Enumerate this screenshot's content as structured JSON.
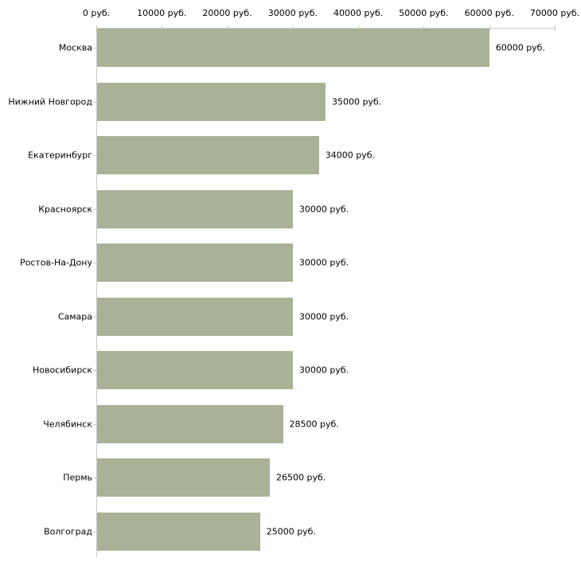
{
  "chart_data": {
    "type": "bar",
    "orientation": "horizontal",
    "title": "",
    "categories": [
      "Москва",
      "Нижний Новгород",
      "Екатеринбург",
      "Красноярск",
      "Ростов-На-Дону",
      "Самара",
      "Новосибирск",
      "Челябинск",
      "Пермь",
      "Волгоград"
    ],
    "values": [
      60000,
      35000,
      34000,
      30000,
      30000,
      30000,
      30000,
      28500,
      26500,
      25000
    ],
    "value_labels": [
      "60000 руб.",
      "35000 руб.",
      "34000 руб.",
      "30000 руб.",
      "30000 руб.",
      "30000 руб.",
      "30000 руб.",
      "28500 руб.",
      "26500 руб.",
      "25000 руб."
    ],
    "x_axis": {
      "position": "top",
      "min": 0,
      "max": 70000,
      "ticks": [
        0,
        10000,
        20000,
        30000,
        40000,
        50000,
        60000,
        70000
      ],
      "tick_labels": [
        "0 руб.",
        "10000 руб.",
        "20000 руб.",
        "30000 руб.",
        "40000 руб.",
        "50000 руб.",
        "60000 руб.",
        "70000 руб."
      ]
    },
    "colors": {
      "bar": "#a9b296",
      "axis_line": "#c9c9c9",
      "tick": "#c9cc99",
      "text": "#000000"
    },
    "grid": false,
    "legend": false
  }
}
